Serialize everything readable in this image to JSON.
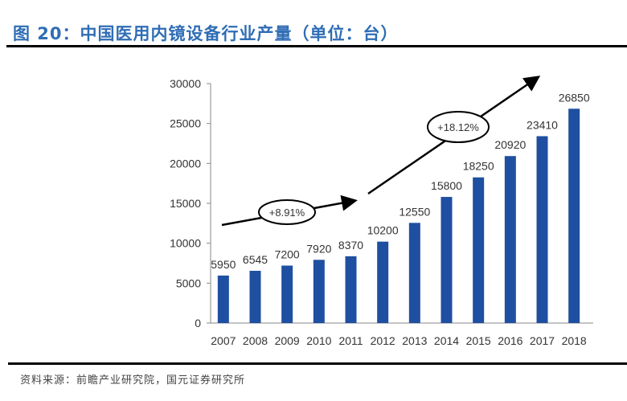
{
  "title": "图 20：中国医用内镜设备行业产量（单位：台）",
  "source": "资料来源：前瞻产业研究院，国元证券研究所",
  "chart_data": {
    "type": "bar",
    "title": "中国医用内镜设备行业产量（单位：台）",
    "categories": [
      "2007",
      "2008",
      "2009",
      "2010",
      "2011",
      "2012",
      "2013",
      "2014",
      "2015",
      "2016",
      "2017",
      "2018"
    ],
    "values": [
      5950,
      6545,
      7200,
      7920,
      8370,
      10200,
      12550,
      15800,
      18250,
      20920,
      23410,
      26850
    ],
    "ylim": [
      0,
      30000
    ],
    "yticks": [
      0,
      5000,
      10000,
      15000,
      20000,
      25000,
      30000
    ],
    "bar_color": "#1f4fa0",
    "annotations": [
      {
        "text": "+8.91%"
      },
      {
        "text": "+18.12%"
      }
    ],
    "xlabel": "",
    "ylabel": "",
    "grid": false
  }
}
